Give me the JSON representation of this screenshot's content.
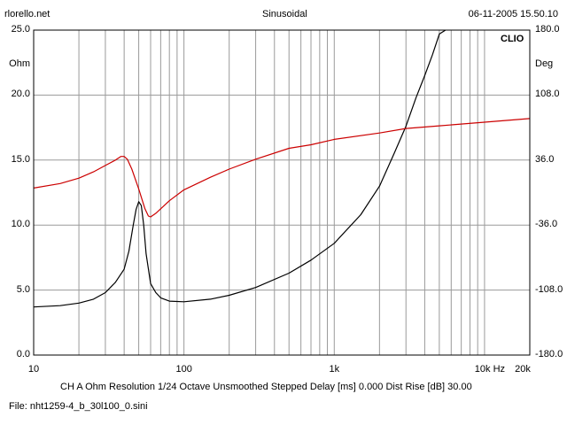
{
  "header": {
    "left": "rlorello.net",
    "center": "Sinusoidal",
    "right": "06-11-2005 15.50.10"
  },
  "brand": "CLIO",
  "axes": {
    "left_unit": "Ohm",
    "right_unit": "Deg",
    "x_tick_labels": [
      "10",
      "100",
      "1k",
      "10k Hz",
      "20k"
    ],
    "left_tick_labels": [
      "25.0",
      "20.0",
      "15.0",
      "10.0",
      "5.0",
      "0.0"
    ],
    "right_tick_labels": [
      "180.0",
      "108.0",
      "36.0",
      "-36.0",
      "-108.0",
      "-180.0"
    ]
  },
  "footer": {
    "settings": "CH A   Ohm   Resolution 1/24 Octave   Unsmoothed   Stepped     Delay [ms] 0.000    Dist Rise [dB] 30.00",
    "file": "File: nht1259-4_b_30l100_0.sini"
  },
  "colors": {
    "impedance": "#000000",
    "phase": "#cc0000",
    "grid": "#9a9a9a",
    "frame": "#000000"
  },
  "chart_data": {
    "type": "line",
    "x_scale": "log",
    "xlim": [
      10,
      20000
    ],
    "ylim_left": [
      0,
      25
    ],
    "ylim_right": [
      -180,
      180
    ],
    "series": [
      {
        "axis": "left",
        "color": "#000000",
        "x": [
          10,
          15,
          20,
          25,
          30,
          35,
          40,
          43,
          46,
          48,
          50,
          52,
          54,
          56,
          60,
          65,
          70,
          80,
          100,
          150,
          200,
          300,
          500,
          700,
          1000,
          1500,
          2000,
          2500,
          3000,
          3500,
          4000,
          4500,
          5000,
          5500
        ],
        "y": [
          3.7,
          3.8,
          4.0,
          4.3,
          4.8,
          5.6,
          6.6,
          8.0,
          10.0,
          11.2,
          11.8,
          11.5,
          10.0,
          7.8,
          5.5,
          4.8,
          4.4,
          4.15,
          4.1,
          4.3,
          4.6,
          5.2,
          6.3,
          7.3,
          8.6,
          10.8,
          13.0,
          15.5,
          17.6,
          19.8,
          21.5,
          23.1,
          24.7,
          25.0
        ]
      },
      {
        "axis": "right",
        "color": "#cc0000",
        "x": [
          10,
          15,
          20,
          25,
          30,
          35,
          38,
          40,
          42,
          45,
          50,
          55,
          58,
          60,
          65,
          70,
          80,
          100,
          150,
          200,
          300,
          500,
          700,
          1000,
          2000,
          3000,
          5000,
          10000,
          20000
        ],
        "y": [
          5,
          10,
          16,
          23,
          30,
          36,
          40,
          40,
          37,
          26,
          4,
          -18,
          -26,
          -27,
          -23,
          -18,
          -9,
          3,
          17,
          26,
          37,
          49,
          53,
          59,
          66,
          71,
          74,
          78,
          82
        ]
      }
    ]
  }
}
